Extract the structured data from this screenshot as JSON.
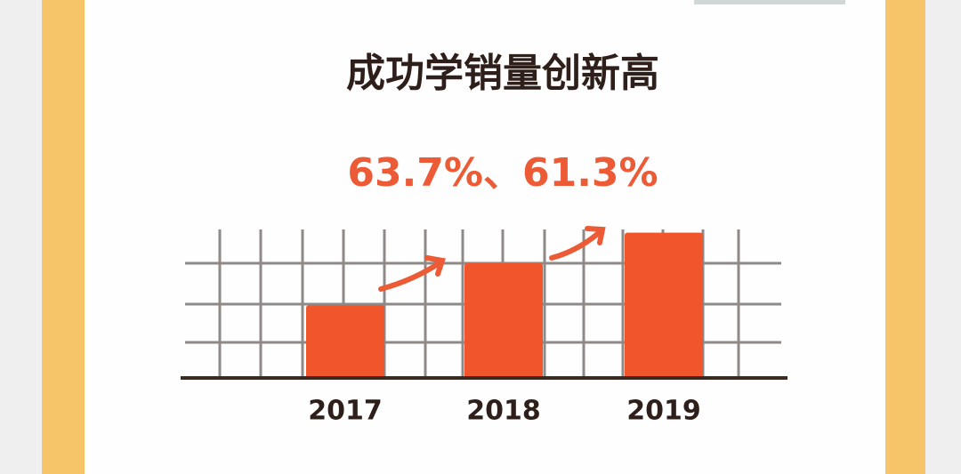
{
  "chart_data": {
    "type": "bar",
    "title": "成功学销量创新高",
    "subtitle": "63.7%、61.3%",
    "categories": [
      "2017",
      "2018",
      "2019"
    ],
    "values": [
      1.9,
      3,
      3.8
    ],
    "color": "#f1552c",
    "ylim": [
      0,
      4
    ]
  }
}
